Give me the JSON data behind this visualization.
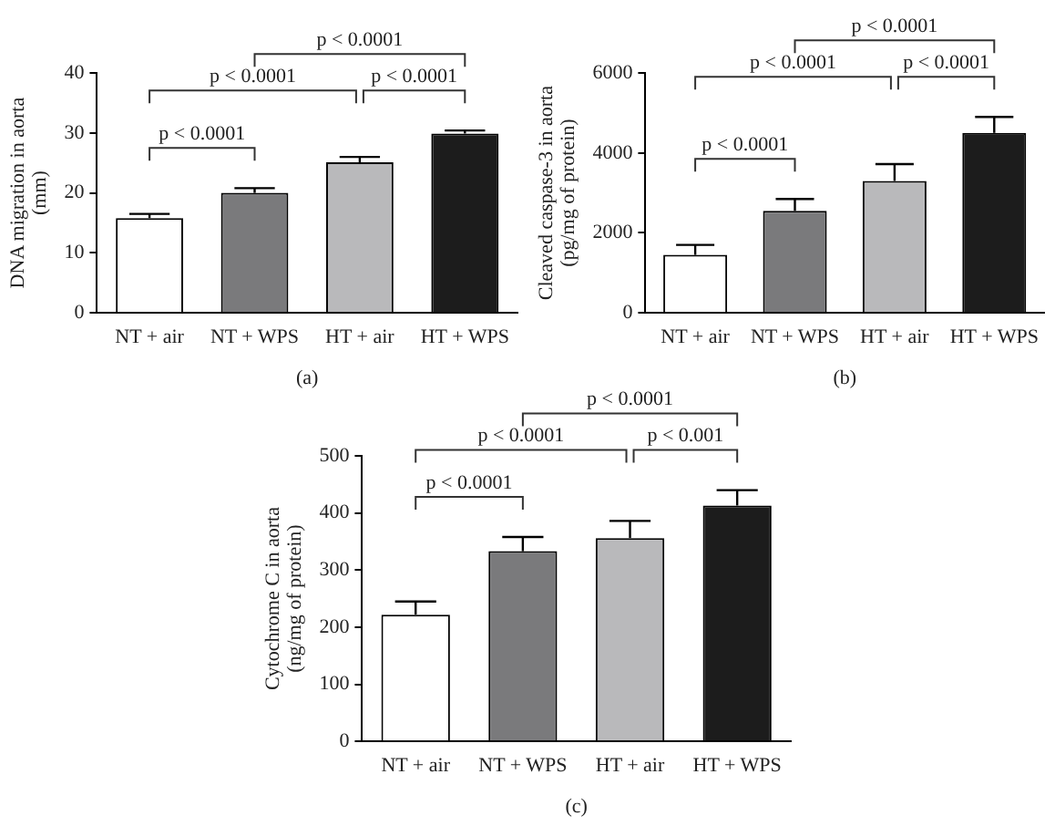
{
  "chart_data": [
    {
      "type": "bar",
      "xlabel": "(a)",
      "ylabel": "DNA migration in aorta\n(mm)",
      "categories": [
        "NT + air",
        "NT + WPS",
        "HT + air",
        "HT + WPS"
      ],
      "values": [
        15.8,
        20,
        25.1,
        29.9
      ],
      "errors": [
        [
          15.8,
          16.5
        ],
        [
          20,
          20.8
        ],
        [
          25.1,
          26
        ],
        [
          29.9,
          30.4
        ]
      ],
      "colors": [
        "#ffffff",
        "#7a7a7c",
        "#b9b9bb",
        "#1c1c1c"
      ],
      "ylim": [
        0,
        40
      ],
      "yticks": [
        0,
        10,
        20,
        30,
        40
      ],
      "grid": false,
      "legend": false,
      "annotations": [
        "p < 0.0001",
        "p < 0.0001",
        "p < 0.0001",
        "p < 0.0001"
      ]
    },
    {
      "type": "bar",
      "xlabel": "(b)",
      "ylabel": "Cleaved caspase-3 in aorta\n(pg/mg of protein)",
      "categories": [
        "NT + air",
        "NT + WPS",
        "HT + air",
        "HT + WPS"
      ],
      "values": [
        1450,
        2550,
        3300,
        4500
      ],
      "errors": [
        [
          1450,
          1700
        ],
        [
          2550,
          2850
        ],
        [
          3300,
          3720
        ],
        [
          4500,
          4900
        ]
      ],
      "colors": [
        "#ffffff",
        "#7a7a7c",
        "#b9b9bb",
        "#1c1c1c"
      ],
      "ylim": [
        0,
        6000
      ],
      "yticks": [
        0,
        2000,
        4000,
        6000
      ],
      "grid": false,
      "legend": false,
      "annotations": [
        "p < 0.0001",
        "p < 0.0001",
        "p < 0.0001",
        "p < 0.0001"
      ]
    },
    {
      "type": "bar",
      "xlabel": "(c)",
      "ylabel": "Cytochrome C in aorta\n(ng/mg of protein)",
      "categories": [
        "NT + air",
        "NT + WPS",
        "HT + air",
        "HT + WPS"
      ],
      "values": [
        222,
        333,
        356,
        413
      ],
      "errors": [
        [
          222,
          245
        ],
        [
          333,
          358
        ],
        [
          356,
          386
        ],
        [
          413,
          440
        ]
      ],
      "colors": [
        "#ffffff",
        "#7a7a7c",
        "#b9b9bb",
        "#1c1c1c"
      ],
      "ylim": [
        0,
        500
      ],
      "yticks": [
        0,
        100,
        200,
        300,
        400,
        500
      ],
      "grid": false,
      "legend": false,
      "annotations": [
        "p < 0.0001",
        "p < 0.0001",
        "p < 0.001",
        "p < 0.0001"
      ]
    }
  ]
}
